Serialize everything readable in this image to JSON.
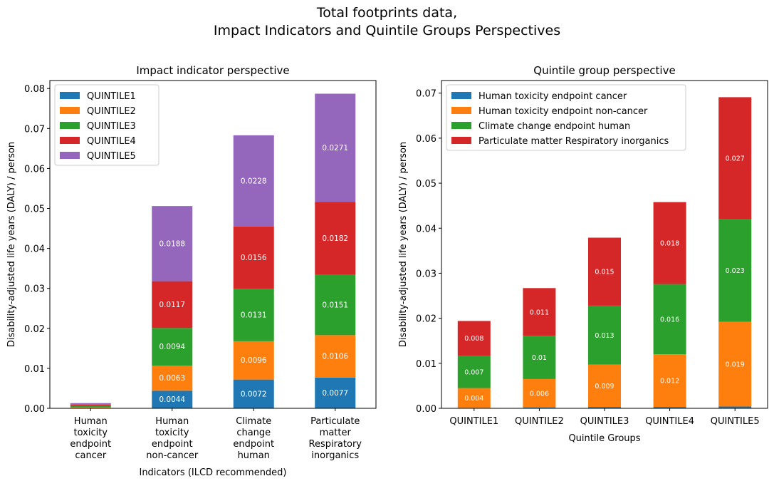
{
  "suptitle": {
    "line1": "Total footprints data,",
    "line2": "Impact Indicators and Quintile Groups Perspectives"
  },
  "colors": {
    "QUINTILE1": "#1f77b4",
    "QUINTILE2": "#ff7f0e",
    "QUINTILE3": "#2ca02c",
    "QUINTILE4": "#d62728",
    "QUINTILE5": "#9467bd",
    "cancer": "#1f77b4",
    "noncancer": "#ff7f0e",
    "climate": "#2ca02c",
    "pm": "#d62728"
  },
  "chart_data": [
    {
      "type": "bar",
      "stacked": true,
      "title": "Impact indicator perspective",
      "xlabel": "Indicators (ILCD recommended)",
      "ylabel": "Disability-adjusted life years (DALY) / person",
      "ylim": [
        0,
        0.082
      ],
      "yticks": [
        "0.00",
        "0.01",
        "0.02",
        "0.03",
        "0.04",
        "0.05",
        "0.06",
        "0.07",
        "0.08"
      ],
      "categories": [
        [
          "Human",
          "toxicity",
          "endpoint",
          "cancer"
        ],
        [
          "Human",
          "toxicity",
          "endpoint",
          "non-cancer"
        ],
        [
          "Climate",
          "change",
          "endpoint",
          "human"
        ],
        [
          "Particulate",
          "matter",
          "Respiratory",
          "inorganics"
        ]
      ],
      "legend_position": "top-left",
      "series": [
        {
          "name": "QUINTILE1",
          "color_key": "QUINTILE1",
          "values": [
            0.0001,
            0.0044,
            0.0072,
            0.0077
          ],
          "labels": [
            "",
            "0.0044",
            "0.0072",
            "0.0077"
          ]
        },
        {
          "name": "QUINTILE2",
          "color_key": "QUINTILE2",
          "values": [
            0.0002,
            0.0063,
            0.0096,
            0.0106
          ],
          "labels": [
            "",
            "0.0063",
            "0.0096",
            "0.0106"
          ]
        },
        {
          "name": "QUINTILE3",
          "color_key": "QUINTILE3",
          "values": [
            0.0003,
            0.0094,
            0.0131,
            0.0151
          ],
          "labels": [
            "",
            "0.0094",
            "0.0131",
            "0.0151"
          ]
        },
        {
          "name": "QUINTILE4",
          "color_key": "QUINTILE4",
          "values": [
            0.0003,
            0.0117,
            0.0156,
            0.0182
          ],
          "labels": [
            "",
            "0.0117",
            "0.0156",
            "0.0182"
          ]
        },
        {
          "name": "QUINTILE5",
          "color_key": "QUINTILE5",
          "values": [
            0.0004,
            0.0188,
            0.0228,
            0.0271
          ],
          "labels": [
            "",
            "0.0188",
            "0.0228",
            "0.0271"
          ]
        }
      ]
    },
    {
      "type": "bar",
      "stacked": true,
      "title": "Quintile group perspective",
      "xlabel": "Quintile Groups",
      "ylabel": "Disability-adjusted life years (DALY) / person",
      "ylim": [
        0,
        0.0728
      ],
      "yticks": [
        "0.00",
        "0.01",
        "0.02",
        "0.03",
        "0.04",
        "0.05",
        "0.06",
        "0.07"
      ],
      "categories": [
        [
          "QUINTILE1"
        ],
        [
          "QUINTILE2"
        ],
        [
          "QUINTILE3"
        ],
        [
          "QUINTILE4"
        ],
        [
          "QUINTILE5"
        ]
      ],
      "legend_position": "top-left",
      "series": [
        {
          "name": "Human toxicity endpoint cancer",
          "color_key": "cancer",
          "values": [
            0.0001,
            0.0002,
            0.0003,
            0.0003,
            0.0004
          ],
          "labels": [
            "",
            "",
            "",
            "",
            ""
          ]
        },
        {
          "name": "Human toxicity endpoint non-cancer",
          "color_key": "noncancer",
          "values": [
            0.0044,
            0.0063,
            0.0094,
            0.0117,
            0.0188
          ],
          "labels": [
            "0.004",
            "0.006",
            "0.009",
            "0.012",
            "0.019"
          ]
        },
        {
          "name": "Climate change endpoint human",
          "color_key": "climate",
          "values": [
            0.0072,
            0.0096,
            0.0131,
            0.0156,
            0.0228
          ],
          "labels": [
            "0.007",
            "0.01",
            "0.013",
            "0.016",
            "0.023"
          ]
        },
        {
          "name": "Particulate matter Respiratory inorganics",
          "color_key": "pm",
          "values": [
            0.0077,
            0.0106,
            0.0151,
            0.0182,
            0.0271
          ],
          "labels": [
            "0.008",
            "0.011",
            "0.015",
            "0.018",
            "0.027"
          ]
        }
      ]
    }
  ]
}
